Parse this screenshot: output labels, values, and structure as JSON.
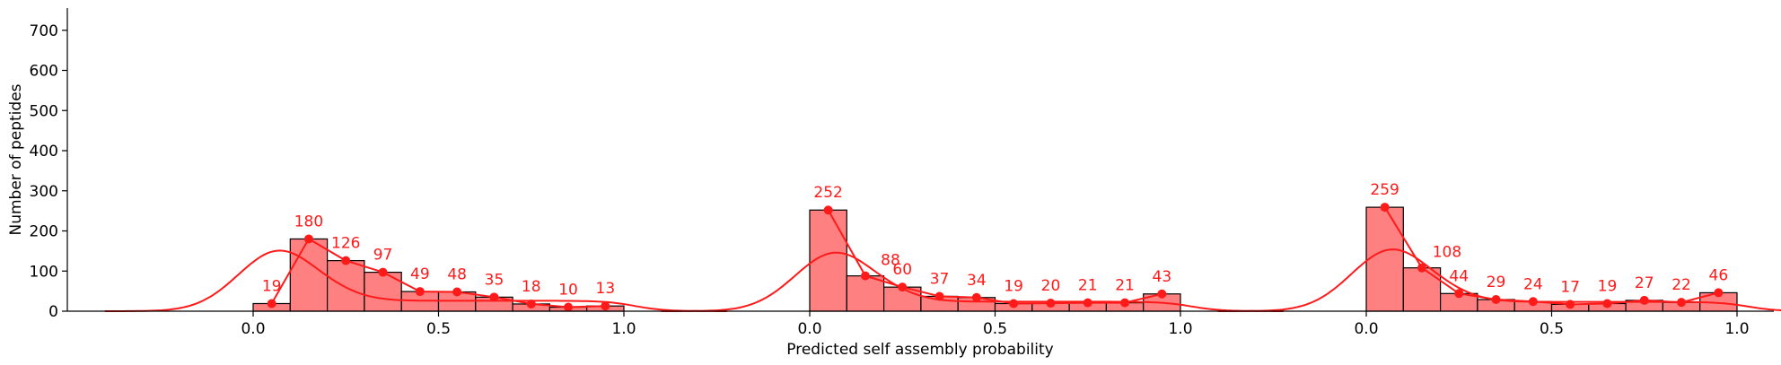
{
  "chart_data": {
    "type": "bar",
    "xlabel": "Predicted self assembly probability",
    "ylabel": "Number of peptides",
    "ylim": [
      0,
      750
    ],
    "yticks": [
      0,
      100,
      200,
      300,
      400,
      500,
      600,
      700
    ],
    "x_tick_labels": [
      "0.0",
      "0.5",
      "1.0"
    ],
    "bin_width": 0.1,
    "grid": false,
    "colors": {
      "bar_fill": "#ff8080",
      "bar_edge": "#000000",
      "line": "#ff1a1a",
      "label": "#ff1a1a",
      "axis": "#000000"
    },
    "panels": [
      {
        "bin_centers": [
          0.05,
          0.15,
          0.25,
          0.35,
          0.45,
          0.55,
          0.65,
          0.75,
          0.85,
          0.95
        ],
        "values": [
          19,
          180,
          126,
          97,
          49,
          48,
          35,
          18,
          10,
          13
        ],
        "kde_peak": 150
      },
      {
        "bin_centers": [
          0.05,
          0.15,
          0.25,
          0.35,
          0.45,
          0.55,
          0.65,
          0.75,
          0.85,
          0.95
        ],
        "values": [
          252,
          88,
          60,
          37,
          34,
          19,
          20,
          21,
          21,
          43
        ],
        "kde_peak": 145
      },
      {
        "bin_centers": [
          0.05,
          0.15,
          0.25,
          0.35,
          0.45,
          0.55,
          0.65,
          0.75,
          0.85,
          0.95
        ],
        "values": [
          259,
          108,
          44,
          29,
          24,
          17,
          19,
          27,
          22,
          46
        ],
        "kde_peak": 153
      }
    ]
  }
}
